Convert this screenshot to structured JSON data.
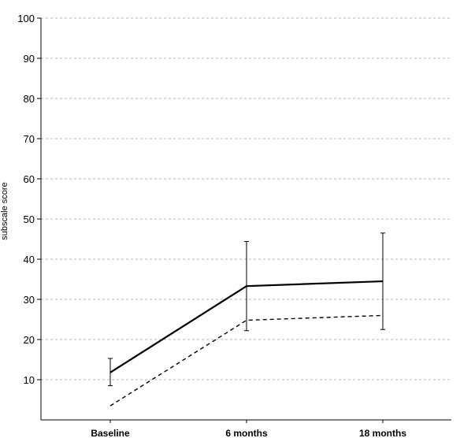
{
  "chart_data": {
    "type": "line",
    "categories": [
      "Baseline",
      "6 months",
      "18 months"
    ],
    "ylabel": "subscale score",
    "xlabel": "",
    "title": "",
    "ylim": [
      0,
      100
    ],
    "yticks": [
      10,
      20,
      30,
      40,
      50,
      60,
      70,
      80,
      90,
      100
    ],
    "grid": true,
    "legend": "none",
    "series": [
      {
        "style": "solid",
        "color": "#000000",
        "values": [
          11.8,
          33.3,
          34.5
        ],
        "error_low": [
          8.5,
          22.2,
          22.5
        ],
        "error_high": [
          15.3,
          44.4,
          46.5
        ]
      },
      {
        "style": "dashed",
        "color": "#000000",
        "values": [
          3.5,
          24.8,
          26.0
        ]
      }
    ]
  }
}
